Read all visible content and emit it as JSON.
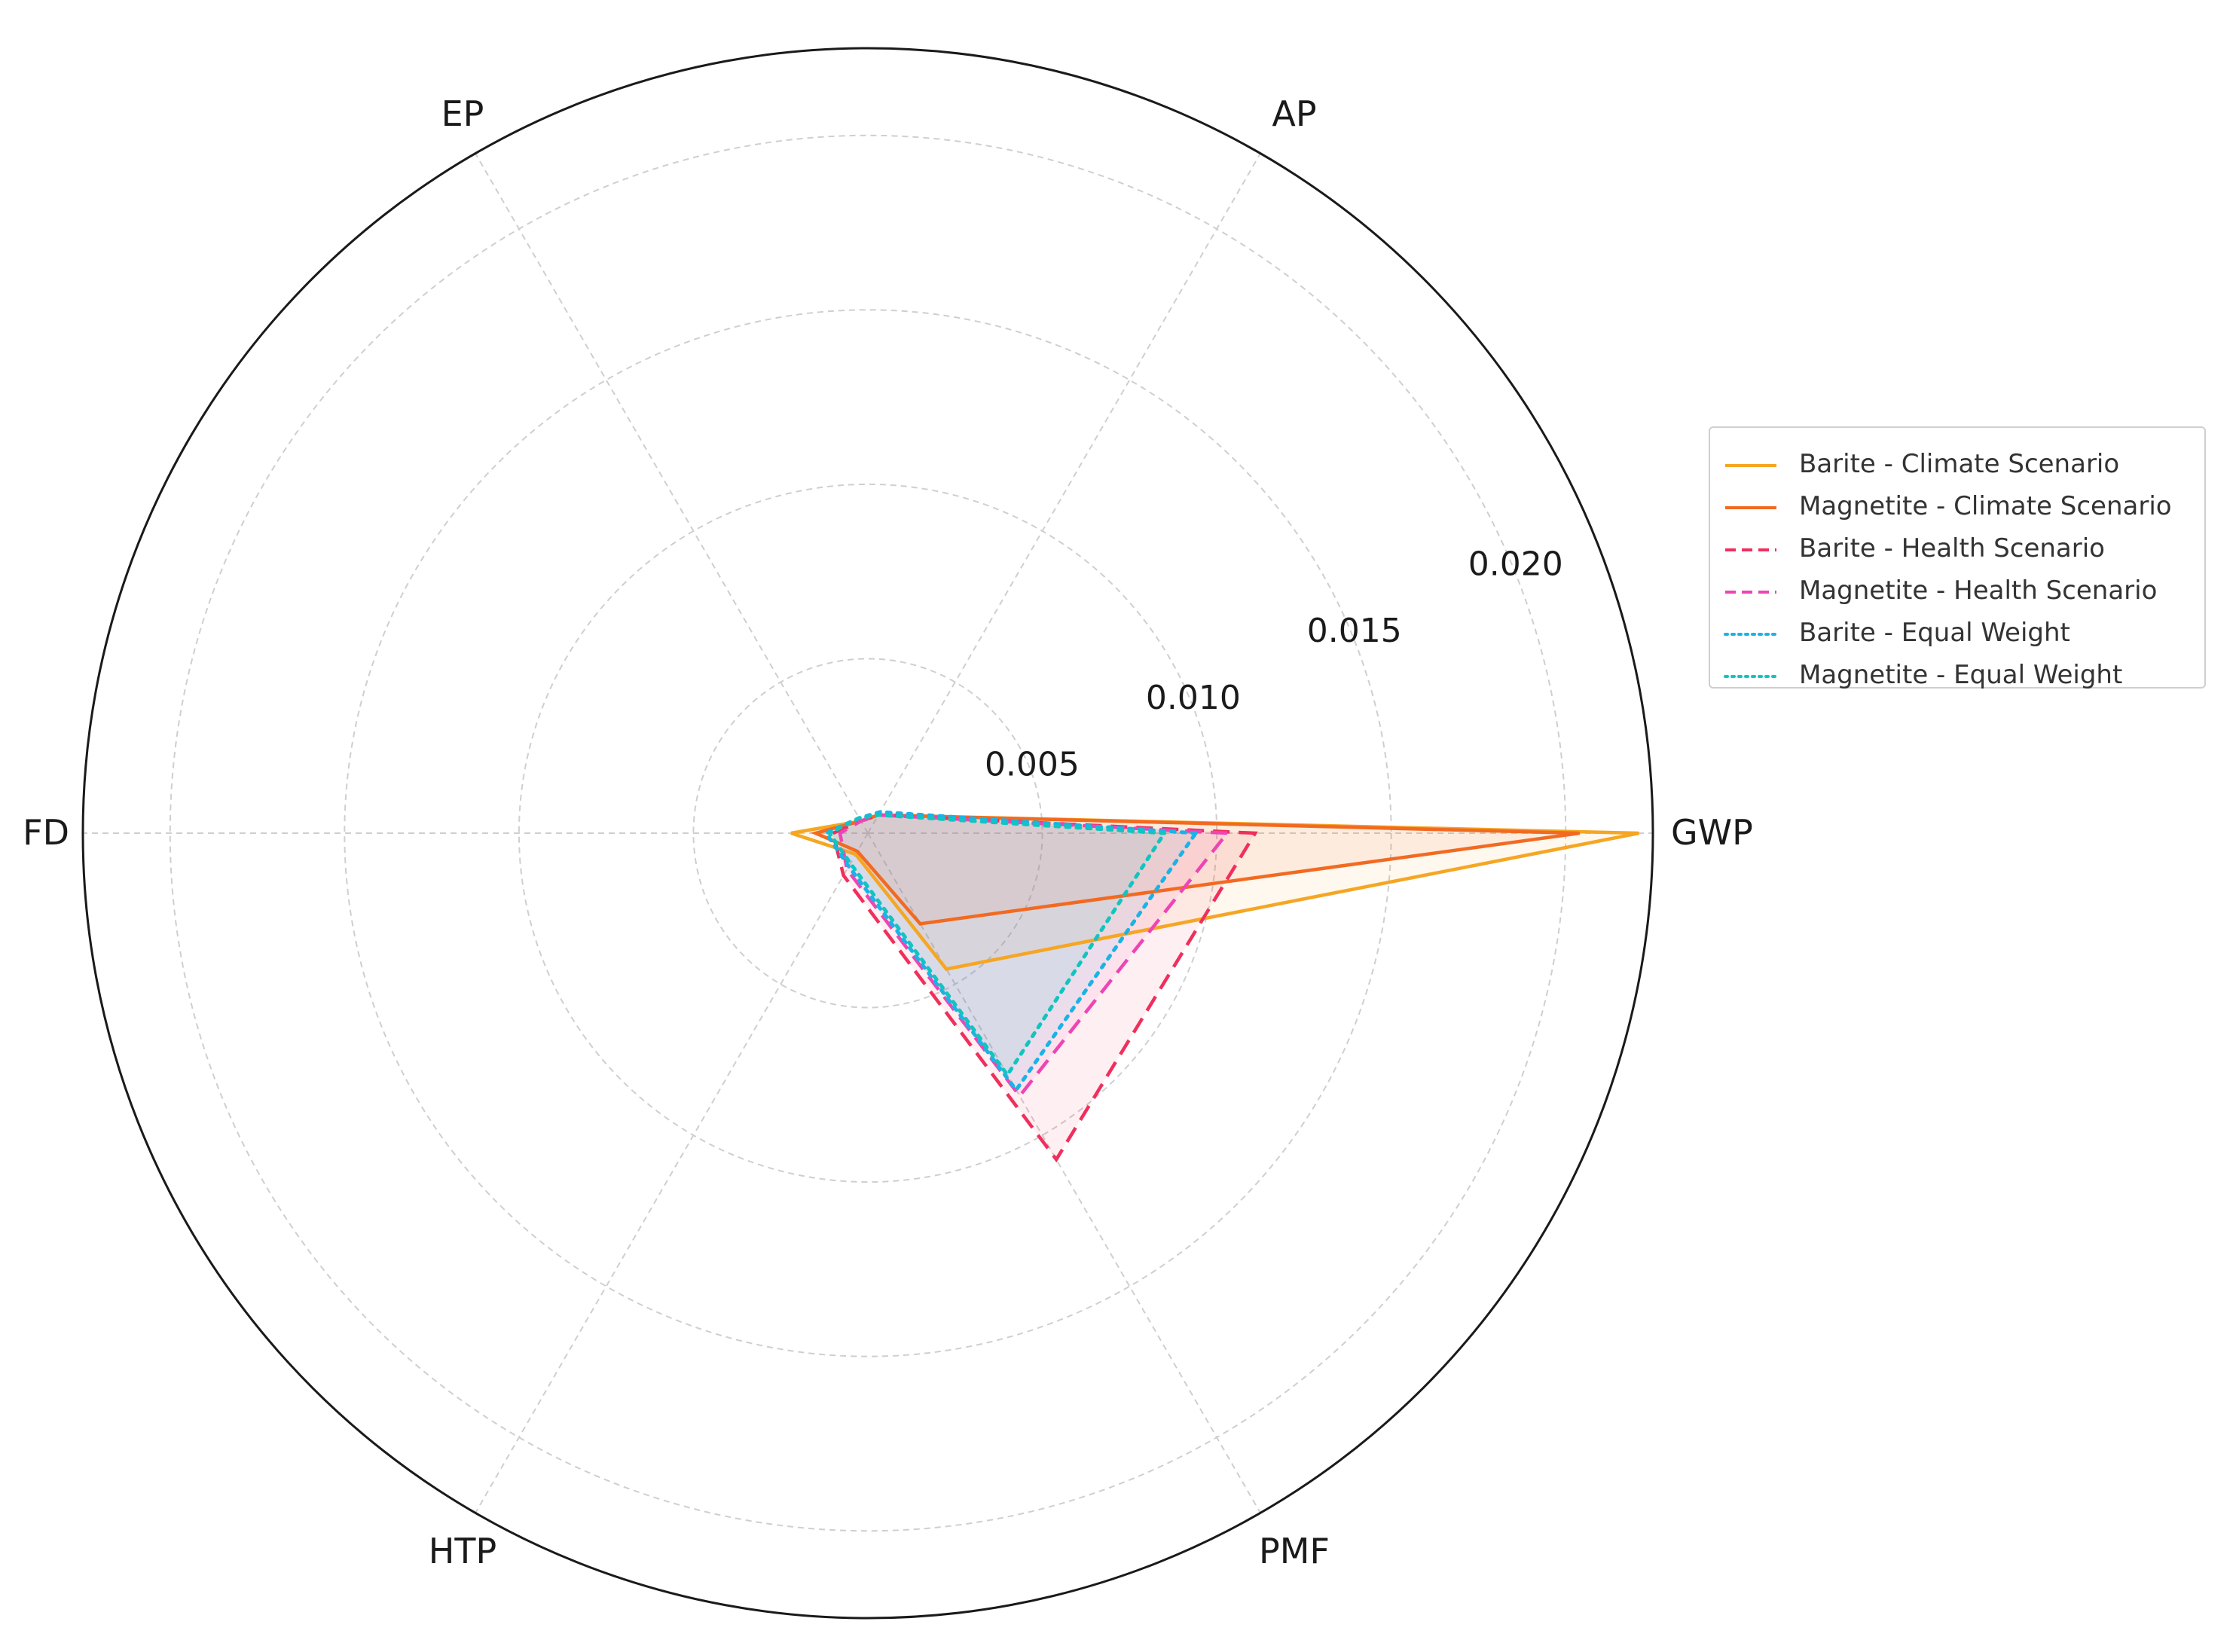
{
  "chart_data": {
    "type": "radar",
    "axes": [
      "GWP",
      "AP",
      "EP",
      "FD",
      "HTP",
      "PMF"
    ],
    "radial_ticks": [
      0.005,
      0.01,
      0.015,
      0.02
    ],
    "radial_tick_labels": [
      "0.005",
      "0.010",
      "0.015",
      "0.020"
    ],
    "rmax": 0.0225,
    "grid": true,
    "legend_position": "right",
    "series": [
      {
        "name": "Barite - Climate Scenario",
        "color": "#f5a623",
        "dash": "solid",
        "values": [
          0.0221,
          0.0006,
          0.0004,
          0.0022,
          0.0007,
          0.0045
        ]
      },
      {
        "name": "Magnetite - Climate Scenario",
        "color": "#f26a21",
        "dash": "solid",
        "values": [
          0.0204,
          0.0006,
          0.0004,
          0.0015,
          0.0006,
          0.003
        ]
      },
      {
        "name": "Barite - Health Scenario",
        "color": "#ef2f5c",
        "dash": "dashed",
        "values": [
          0.0111,
          0.0006,
          0.0004,
          0.001,
          0.0014,
          0.0108
        ]
      },
      {
        "name": "Magnetite - Health Scenario",
        "color": "#ee44b4",
        "dash": "dashed",
        "values": [
          0.0103,
          0.0006,
          0.0004,
          0.0008,
          0.0012,
          0.0087
        ]
      },
      {
        "name": "Barite - Equal Weight",
        "color": "#1ab3e6",
        "dash": "dotted",
        "values": [
          0.0094,
          0.0007,
          0.0005,
          0.0012,
          0.0011,
          0.0085
        ]
      },
      {
        "name": "Magnetite - Equal Weight",
        "color": "#12c4c0",
        "dash": "dotted",
        "values": [
          0.0085,
          0.0006,
          0.0005,
          0.0011,
          0.001,
          0.008
        ]
      }
    ]
  }
}
